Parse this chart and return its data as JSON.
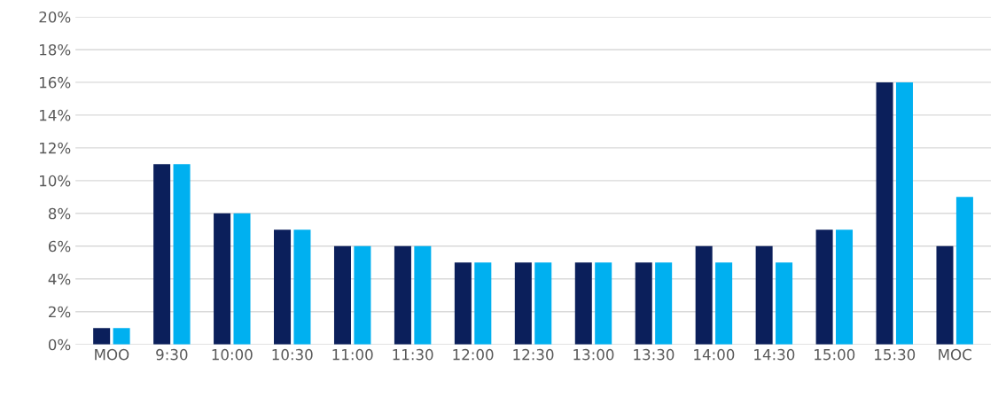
{
  "chart_data": {
    "type": "bar",
    "categories": [
      "MOO",
      "9:30",
      "10:00",
      "10:30",
      "11:00",
      "11:30",
      "12:00",
      "12:30",
      "13:00",
      "13:30",
      "14:00",
      "14:30",
      "15:00",
      "15:30",
      "MOC"
    ],
    "series": [
      {
        "color": "#0b1f5b",
        "values": [
          1,
          11,
          8,
          7,
          6,
          6,
          5,
          5,
          5,
          5,
          6,
          6,
          7,
          16,
          6
        ]
      },
      {
        "color": "#00b0f0",
        "values": [
          1,
          11,
          8,
          7,
          6,
          6,
          5,
          5,
          5,
          5,
          5,
          5,
          7,
          16,
          9
        ]
      }
    ],
    "ylim": [
      0,
      20
    ],
    "yticks": [
      {
        "value": 0,
        "label": "0%"
      },
      {
        "value": 2,
        "label": "2%"
      },
      {
        "value": 4,
        "label": "4%"
      },
      {
        "value": 6,
        "label": "6%"
      },
      {
        "value": 8,
        "label": "8%"
      },
      {
        "value": 10,
        "label": "10%"
      },
      {
        "value": 12,
        "label": "12%"
      },
      {
        "value": 14,
        "label": "14%"
      },
      {
        "value": 16,
        "label": "16%"
      },
      {
        "value": 18,
        "label": "18%"
      },
      {
        "value": 20,
        "label": "20%"
      }
    ],
    "grid": "y"
  }
}
